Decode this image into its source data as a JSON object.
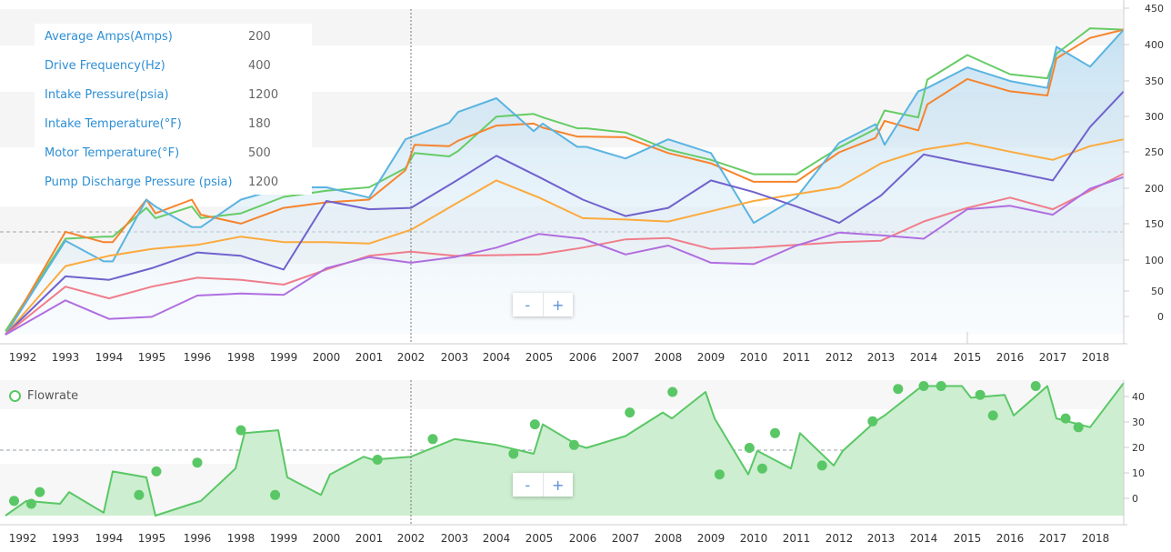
{
  "colors": {
    "avg_amps": "#66cc66",
    "drive_freq": "#f6842d",
    "intake_pressure": "#5ab4e0",
    "intake_temp": "#fbaa3d",
    "motor_temp": "#7062cc",
    "pump_discharge": "#f07d8a",
    "purple_series": "#b06ee0",
    "flowrate": "#5ac766",
    "legend_text": "#2e8fd4"
  },
  "legend": [
    {
      "name": "Average Amps(Amps)",
      "value": "200"
    },
    {
      "name": "Drive Frequency(Hz)",
      "value": "400"
    },
    {
      "name": "Intake Pressure(psia)",
      "value": "1200"
    },
    {
      "name": "Intake Temperature(°F)",
      "value": "180"
    },
    {
      "name": "Motor Temperature(°F)",
      "value": "500"
    },
    {
      "name": "Pump Discharge Pressure (psia)",
      "value": "1200"
    }
  ],
  "flow_legend": {
    "label": "Flowrate"
  },
  "zoom": {
    "minus": "-",
    "plus": "+"
  },
  "chart_data": [
    {
      "type": "line",
      "x_ticks": [
        "1992",
        "1993",
        "1994",
        "1995",
        "1996",
        "1998",
        "1999",
        "2000",
        "2001",
        "2002",
        "2003",
        "2004",
        "2005",
        "2006",
        "2007",
        "2008",
        "2009",
        "2010",
        "2011",
        "2012",
        "2013",
        "2014",
        "2015",
        "2016",
        "2017",
        "2018"
      ],
      "y_ticks": [
        0,
        50,
        100,
        150,
        200,
        250,
        300,
        350,
        400,
        450
      ],
      "ylim": [
        -25,
        450
      ],
      "crosshair_x": "2002",
      "series": [
        {
          "key": "avg_amps",
          "x": [
            "1992",
            "1993",
            "1994",
            "1994",
            "1995",
            "1995",
            "1996",
            "1996",
            "1998",
            "1999",
            "2000",
            "2001",
            "2002",
            "2002",
            "2003",
            "2003",
            "2004",
            "2005",
            "2005",
            "2006",
            "2006",
            "2007",
            "2008",
            "2009",
            "2010",
            "2011",
            "2012",
            "2013",
            "2013",
            "2014",
            "2014",
            "2015",
            "2016",
            "2017",
            "2017",
            "2018",
            "2018"
          ],
          "values": [
            -20,
            115,
            118,
            118,
            160,
            145,
            162,
            145,
            152,
            176,
            185,
            190,
            218,
            240,
            235,
            243,
            293,
            297,
            292,
            276,
            276,
            270,
            245,
            230,
            209,
            209,
            248,
            275,
            302,
            292,
            347,
            383,
            355,
            349,
            385,
            422,
            420
          ]
        },
        {
          "key": "drive_freq",
          "x": [
            "1992",
            "1993",
            "1994",
            "1994",
            "1995",
            "1995",
            "1996",
            "1996",
            "1998",
            "1999",
            "2000",
            "2001",
            "2002",
            "2002",
            "2003",
            "2003",
            "2004",
            "2005",
            "2005",
            "2006",
            "2006",
            "2007",
            "2008",
            "2009",
            "2010",
            "2011",
            "2012",
            "2013",
            "2013",
            "2014",
            "2014",
            "2015",
            "2016",
            "2017",
            "2017",
            "2018",
            "2018"
          ],
          "values": [
            -25,
            125,
            110,
            110,
            172,
            152,
            172,
            150,
            137,
            160,
            168,
            172,
            215,
            252,
            250,
            258,
            280,
            283,
            277,
            264,
            264,
            263,
            240,
            225,
            198,
            198,
            241,
            262,
            287,
            273,
            311,
            348,
            330,
            324,
            378,
            408,
            420
          ]
        },
        {
          "key": "intake_pressure",
          "x": [
            "1992",
            "1993",
            "1994",
            "1994",
            "1995",
            "1995",
            "1996",
            "1996",
            "1998",
            "1999",
            "2000",
            "2001",
            "2002",
            "2002",
            "2003",
            "2003",
            "2004",
            "2005",
            "2005",
            "2006",
            "2006",
            "2007",
            "2008",
            "2009",
            "2010",
            "2011",
            "2012",
            "2013",
            "2013",
            "2014",
            "2014",
            "2015",
            "2016",
            "2017",
            "2017",
            "2018",
            "2018"
          ],
          "values": [
            -25,
            112,
            82,
            82,
            172,
            162,
            132,
            132,
            172,
            190,
            190,
            175,
            260,
            265,
            284,
            300,
            320,
            272,
            283,
            249,
            249,
            232,
            260,
            240,
            138,
            175,
            255,
            282,
            252,
            330,
            335,
            365,
            345,
            335,
            395,
            366,
            420
          ]
        },
        {
          "key": "intake_temp",
          "x": [
            "1992",
            "1993",
            "1994",
            "1995",
            "1996",
            "1998",
            "1999",
            "2000",
            "2001",
            "2002",
            "2003",
            "2004",
            "2005",
            "2006",
            "2007",
            "2008",
            "2009",
            "2010",
            "2011",
            "2012",
            "2013",
            "2014",
            "2015",
            "2016",
            "2017",
            "2018",
            "2018"
          ],
          "values": [
            -25,
            75,
            90,
            100,
            106,
            118,
            110,
            110,
            108,
            128,
            165,
            200,
            175,
            145,
            143,
            140,
            155,
            170,
            180,
            190,
            225,
            245,
            255,
            242,
            230,
            250,
            260
          ]
        },
        {
          "key": "motor_temp",
          "x": [
            "1992",
            "1993",
            "1994",
            "1995",
            "1996",
            "1998",
            "1999",
            "2000",
            "2001",
            "2002",
            "2003",
            "2004",
            "2005",
            "2006",
            "2007",
            "2008",
            "2009",
            "2010",
            "2011",
            "2012",
            "2013",
            "2014",
            "2015",
            "2016",
            "2017",
            "2018",
            "2018"
          ],
          "values": [
            -25,
            60,
            55,
            72,
            95,
            90,
            70,
            170,
            158,
            160,
            198,
            236,
            205,
            172,
            148,
            160,
            200,
            183,
            162,
            138,
            178,
            238,
            225,
            213,
            200,
            278,
            330
          ]
        },
        {
          "key": "pump_discharge",
          "x": [
            "1992",
            "1993",
            "1994",
            "1995",
            "1996",
            "1998",
            "1999",
            "2000",
            "2001",
            "2002",
            "2003",
            "2004",
            "2005",
            "2006",
            "2007",
            "2008",
            "2009",
            "2010",
            "2011",
            "2012",
            "2013",
            "2014",
            "2015",
            "2016",
            "2017",
            "2018",
            "2018"
          ],
          "values": [
            -25,
            45,
            28,
            45,
            58,
            55,
            48,
            70,
            90,
            96,
            90,
            91,
            92,
            102,
            114,
            116,
            100,
            102,
            106,
            110,
            112,
            140,
            160,
            175,
            158,
            185,
            210
          ]
        },
        {
          "key": "purple_series",
          "x": [
            "1992",
            "1993",
            "1994",
            "1995",
            "1996",
            "1998",
            "1999",
            "2000",
            "2001",
            "2002",
            "2003",
            "2004",
            "2005",
            "2006",
            "2007",
            "2008",
            "2009",
            "2010",
            "2011",
            "2012",
            "2013",
            "2014",
            "2015",
            "2016",
            "2017",
            "2018",
            "2018"
          ],
          "values": [
            -25,
            25,
            -2,
            1,
            32,
            35,
            33,
            72,
            88,
            80,
            88,
            102,
            122,
            115,
            92,
            105,
            80,
            78,
            105,
            124,
            120,
            115,
            158,
            163,
            150,
            188,
            205
          ]
        }
      ]
    },
    {
      "type": "area",
      "name": "Flowrate",
      "x_ticks": [
        "1992",
        "1993",
        "1994",
        "1995",
        "1996",
        "1998",
        "1999",
        "2000",
        "2001",
        "2002",
        "2003",
        "2004",
        "2005",
        "2006",
        "2007",
        "2008",
        "2009",
        "2010",
        "2011",
        "2012",
        "2013",
        "2014",
        "2015",
        "2016",
        "2017",
        "2018"
      ],
      "y_ticks": [
        0,
        10,
        20,
        30,
        40
      ],
      "ylim": [
        -5,
        40
      ],
      "crosshair_x": "2002",
      "x": [
        "1992",
        "1992",
        "1993",
        "1993",
        "1994",
        "1994",
        "1995",
        "1995",
        "1996",
        "1996",
        "1998",
        "1998",
        "1999",
        "1999",
        "2000",
        "2000",
        "2001",
        "2001",
        "2002",
        "2003",
        "2004",
        "2005",
        "2005",
        "2006",
        "2006",
        "2007",
        "2008",
        "2008",
        "2009",
        "2009",
        "2010",
        "2010",
        "2011",
        "2011",
        "2012",
        "2012",
        "2013",
        "2013",
        "2014",
        "2014",
        "2015",
        "2015",
        "2016",
        "2016",
        "2017",
        "2017",
        "2018",
        "2018"
      ],
      "values": [
        -5,
        0,
        -1,
        3,
        -4,
        10,
        8,
        -5,
        -1,
        0,
        11,
        23,
        24,
        8,
        2,
        9,
        15,
        14,
        15,
        21,
        19,
        16,
        26,
        19,
        18,
        22,
        30,
        28,
        37,
        28,
        9,
        17,
        11,
        23,
        12,
        17,
        27,
        29,
        38,
        39,
        39,
        35,
        36,
        29,
        39,
        28,
        25,
        40
      ],
      "markers": [
        [
          0.5,
          0
        ],
        [
          1.2,
          -1
        ],
        [
          1.4,
          3
        ],
        [
          4.1,
          10
        ],
        [
          3.7,
          2
        ],
        [
          5.0,
          13
        ],
        [
          6.0,
          24
        ],
        [
          6.8,
          2
        ],
        [
          9.2,
          14
        ],
        [
          10.5,
          21
        ],
        [
          12.4,
          16
        ],
        [
          12.9,
          26
        ],
        [
          13.8,
          19
        ],
        [
          15.1,
          30
        ],
        [
          16.1,
          37
        ],
        [
          17.2,
          9
        ],
        [
          17.9,
          18
        ],
        [
          18.2,
          11
        ],
        [
          18.5,
          23
        ],
        [
          19.6,
          12
        ],
        [
          20.8,
          27
        ],
        [
          21.4,
          38
        ],
        [
          22.0,
          39
        ],
        [
          22.4,
          39
        ],
        [
          23.3,
          36
        ],
        [
          23.6,
          29
        ],
        [
          24.6,
          39
        ],
        [
          25.3,
          28
        ],
        [
          25.6,
          25
        ]
      ]
    }
  ]
}
